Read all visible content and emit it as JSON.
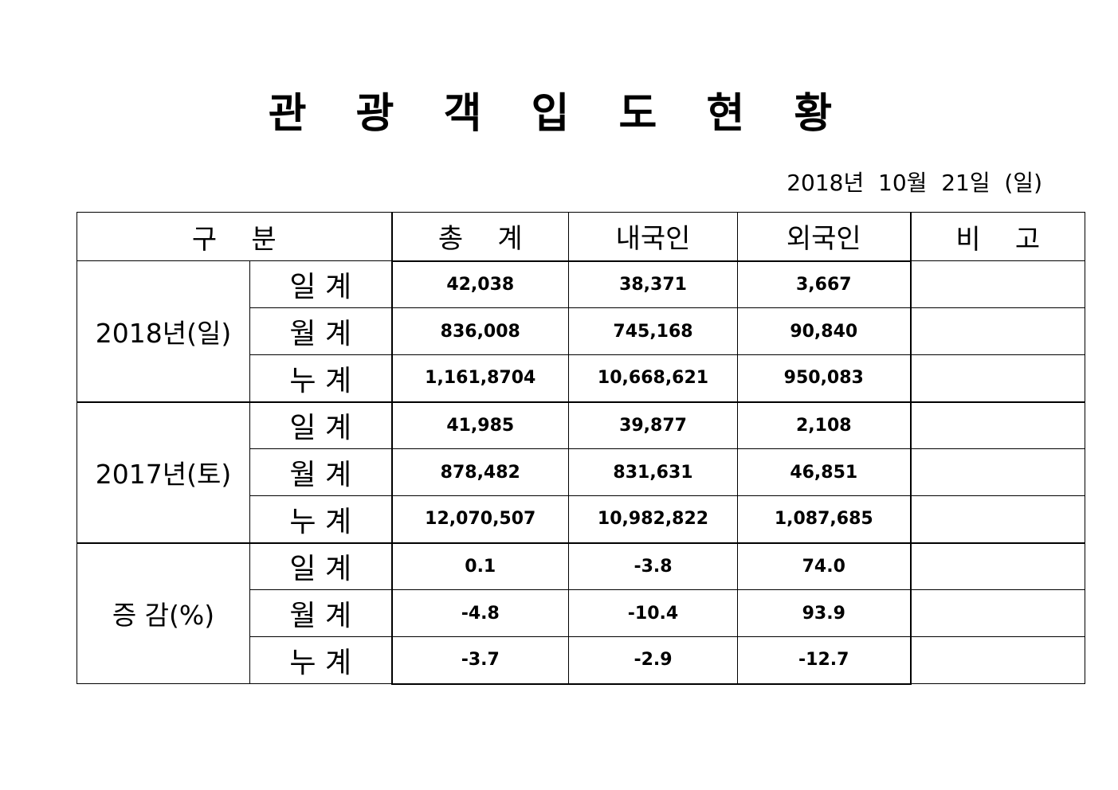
{
  "title": "관 광 객 입 도 현 황",
  "date": "2018년  10월  21일  (일)",
  "table": {
    "headers": [
      "구    분",
      "총    계",
      "내국인",
      "외국인",
      "비    고"
    ],
    "groups": [
      {
        "label": "2018년(일)",
        "rows": [
          {
            "label": "일  계",
            "total": "42,038",
            "domestic": "38,371",
            "foreign": "3,667",
            "note": ""
          },
          {
            "label": "월  계",
            "total": "836,008",
            "domestic": "745,168",
            "foreign": "90,840",
            "note": ""
          },
          {
            "label": "누  계",
            "total": "1,161,8704",
            "domestic": "10,668,621",
            "foreign": "950,083",
            "note": ""
          }
        ]
      },
      {
        "label": "2017년(토)",
        "rows": [
          {
            "label": "일  계",
            "total": "41,985",
            "domestic": "39,877",
            "foreign": "2,108",
            "note": ""
          },
          {
            "label": "월  계",
            "total": "878,482",
            "domestic": "831,631",
            "foreign": "46,851",
            "note": ""
          },
          {
            "label": "누  계",
            "total": "12,070,507",
            "domestic": "10,982,822",
            "foreign": "1,087,685",
            "note": ""
          }
        ]
      },
      {
        "label": "증  감(%)",
        "rows": [
          {
            "label": "일  계",
            "total": "0.1",
            "domestic": "-3.8",
            "foreign": "74.0",
            "note": ""
          },
          {
            "label": "월  계",
            "total": "-4.8",
            "domestic": "-10.4",
            "foreign": "93.9",
            "note": ""
          },
          {
            "label": "누  계",
            "total": "-3.7",
            "domestic": "-2.9",
            "foreign": "-12.7",
            "note": ""
          }
        ]
      }
    ]
  }
}
